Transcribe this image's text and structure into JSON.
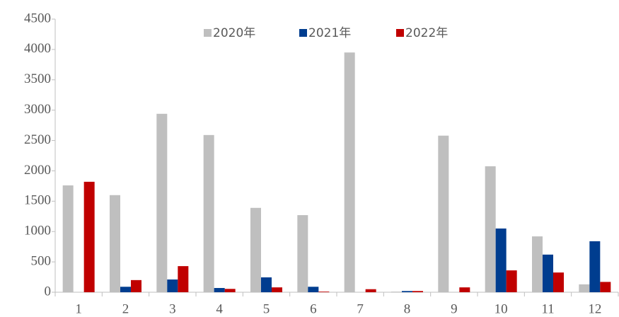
{
  "chart_data": {
    "type": "bar",
    "categories": [
      "1",
      "2",
      "3",
      "4",
      "5",
      "6",
      "7",
      "8",
      "9",
      "10",
      "11",
      "12"
    ],
    "series": [
      {
        "name": "2020年",
        "color": "#bfbfbf",
        "values": [
          1760,
          1600,
          2940,
          2590,
          1390,
          1270,
          3950,
          10,
          2580,
          2075,
          920,
          130
        ]
      },
      {
        "name": "2021年",
        "color": "#003d8f",
        "values": [
          0,
          90,
          210,
          70,
          245,
          90,
          0,
          20,
          0,
          1050,
          620,
          840
        ]
      },
      {
        "name": "2022年",
        "color": "#c00000",
        "values": [
          1820,
          200,
          430,
          55,
          80,
          10,
          50,
          20,
          80,
          360,
          325,
          170
        ]
      }
    ],
    "ylim": [
      0,
      4500
    ],
    "yticks": [
      0,
      500,
      1000,
      1500,
      2000,
      2500,
      3000,
      3500,
      4000,
      4500
    ],
    "grid": false,
    "legend": "top"
  }
}
